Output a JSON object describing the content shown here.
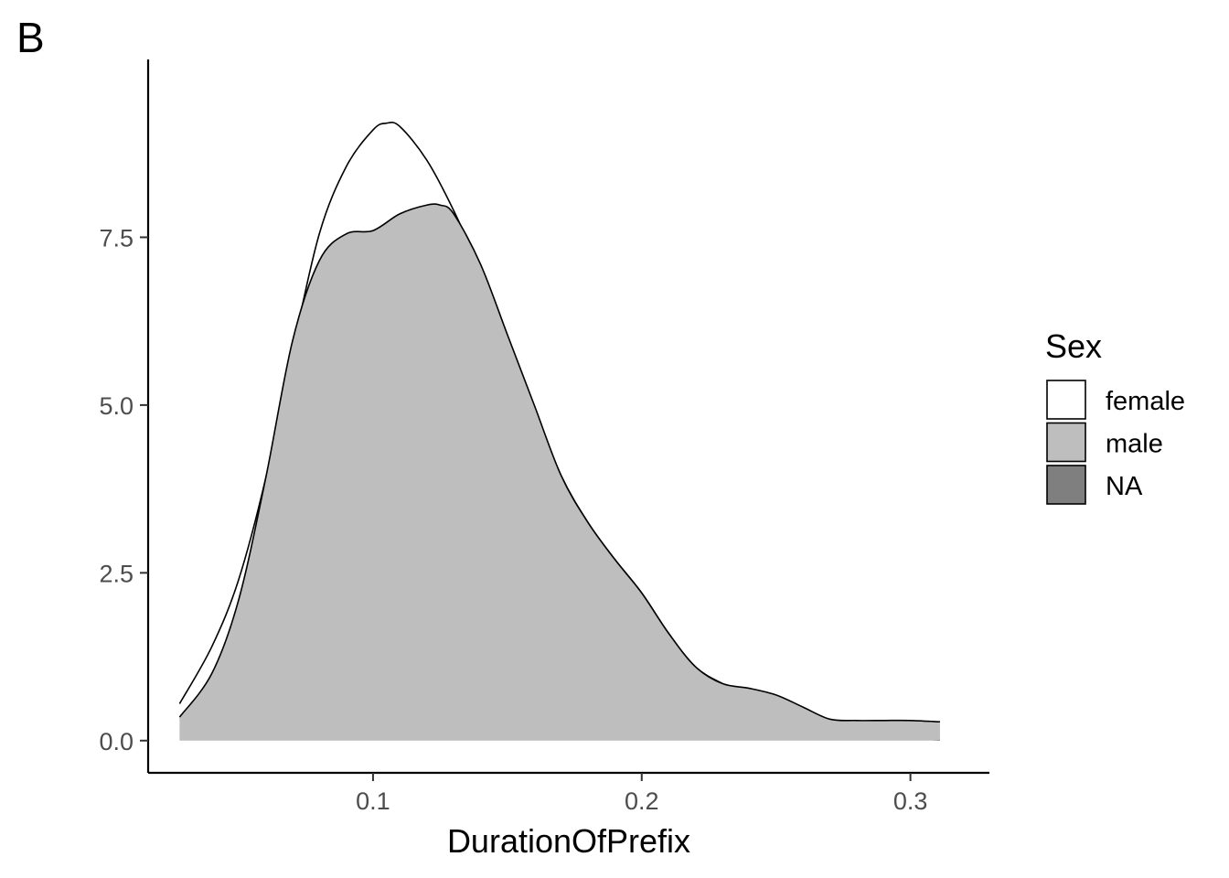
{
  "panel_label": "B",
  "chart_data": {
    "type": "area",
    "chart_subtype": "density",
    "title": "",
    "xlabel": "DurationOfPrefix",
    "ylabel": "",
    "xlim": [
      0.0163,
      0.3294
    ],
    "ylim": [
      -0.48,
      10.15
    ],
    "x_ticks": [
      0.1,
      0.2,
      0.3
    ],
    "x_tick_labels": [
      "0.1",
      "0.2",
      "0.3"
    ],
    "y_ticks": [
      0.0,
      2.5,
      5.0,
      7.5
    ],
    "y_tick_labels": [
      "0.0",
      "2.5",
      "5.0",
      "7.5"
    ],
    "grid": false,
    "legend": {
      "title": "Sex",
      "position": "right",
      "entries": [
        {
          "label": "female",
          "color": "#ffffff"
        },
        {
          "label": "male",
          "color": "#bebebe"
        },
        {
          "label": "NA",
          "color": "#7f7f7f"
        }
      ]
    },
    "series": [
      {
        "name": "female",
        "fill": "#ffffff",
        "x": [
          0.028,
          0.04,
          0.05,
          0.06,
          0.07,
          0.08,
          0.09,
          0.1,
          0.105,
          0.11,
          0.12,
          0.13,
          0.14,
          0.15,
          0.16,
          0.17,
          0.18,
          0.19,
          0.2,
          0.21,
          0.22,
          0.23,
          0.24,
          0.25,
          0.26,
          0.27,
          0.28,
          0.29,
          0.3,
          0.311
        ],
        "y": [
          0.55,
          1.4,
          2.4,
          3.9,
          5.8,
          7.55,
          8.55,
          9.1,
          9.2,
          9.15,
          8.65,
          7.9,
          7.0,
          6.0,
          4.95,
          3.95,
          3.25,
          2.7,
          2.2,
          1.6,
          1.1,
          0.85,
          0.68,
          0.5,
          0.34,
          0.22,
          0.13,
          0.07,
          0.03,
          0.01
        ]
      },
      {
        "name": "male",
        "fill": "#bebebe",
        "x": [
          0.028,
          0.04,
          0.05,
          0.06,
          0.07,
          0.08,
          0.09,
          0.1,
          0.11,
          0.12,
          0.125,
          0.13,
          0.14,
          0.15,
          0.16,
          0.17,
          0.18,
          0.19,
          0.2,
          0.21,
          0.22,
          0.23,
          0.24,
          0.25,
          0.26,
          0.27,
          0.28,
          0.29,
          0.3,
          0.311
        ],
        "y": [
          0.35,
          1.0,
          2.1,
          3.9,
          5.95,
          7.15,
          7.55,
          7.6,
          7.85,
          7.98,
          7.98,
          7.85,
          7.1,
          6.05,
          5.0,
          3.95,
          3.25,
          2.7,
          2.2,
          1.6,
          1.1,
          0.85,
          0.78,
          0.68,
          0.5,
          0.32,
          0.3,
          0.3,
          0.3,
          0.28
        ]
      }
    ]
  }
}
